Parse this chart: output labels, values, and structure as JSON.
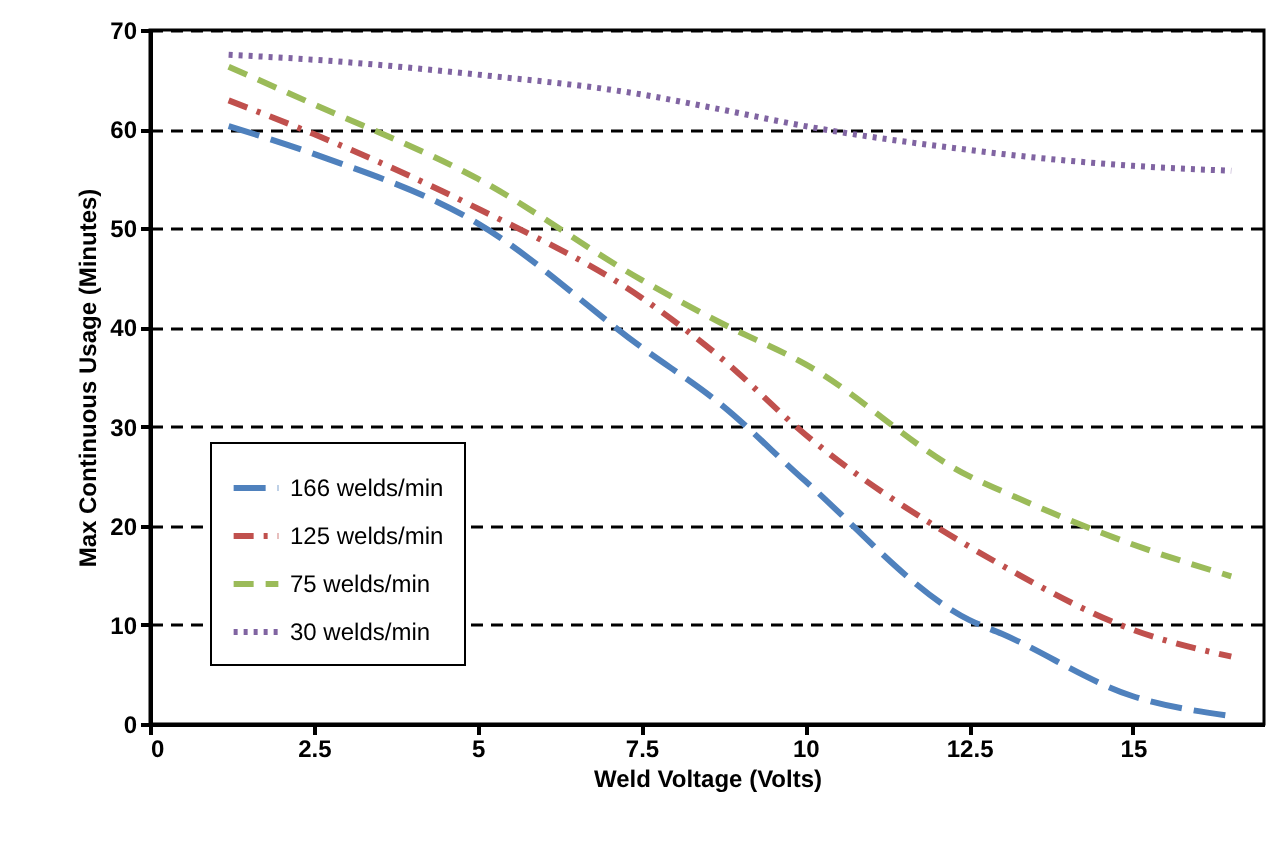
{
  "chart_data": {
    "type": "line",
    "xlabel": "Weld Voltage (Volts)",
    "ylabel": "Max Continuous Usage (Minutes)",
    "xlim": [
      0,
      17
    ],
    "xticks": [
      0,
      2.5,
      5,
      7.5,
      10,
      12.5,
      15
    ],
    "ylim": [
      0,
      70
    ],
    "yticks": [
      0,
      10,
      20,
      30,
      40,
      50,
      60,
      70
    ],
    "grid": "y",
    "legend": "bottom left",
    "marker": "none",
    "x": [
      1.2,
      2.5,
      5,
      7.5,
      8.7,
      10,
      12.5,
      13,
      15,
      16.5
    ],
    "series": [
      {
        "name": "166 welds/min",
        "color": "#4f81bd",
        "line_style": "longdash",
        "values": [
          60.3,
          57.5,
          50.5,
          38,
          32.3,
          24.5,
          10.5,
          9.1,
          2.8,
          0.8
        ]
      },
      {
        "name": "125 welds/min",
        "color": "#c0504d",
        "line_style": "dashdot",
        "values": [
          62.9,
          59.5,
          52,
          43,
          37,
          29.2,
          17.9,
          16,
          9.5,
          6.8
        ]
      },
      {
        "name": "75 welds/min",
        "color": "#9bbb59",
        "line_style": "dashed",
        "values": [
          66.3,
          62.5,
          55,
          44.8,
          40.5,
          36.3,
          25,
          23.5,
          18.1,
          14.9
        ]
      },
      {
        "name": "30 welds/min",
        "color": "#8064a2",
        "line_style": "dotted",
        "values": [
          67.5,
          67,
          65.5,
          63.5,
          62,
          60.3,
          57.9,
          57.5,
          56.3,
          55.8
        ]
      }
    ]
  }
}
